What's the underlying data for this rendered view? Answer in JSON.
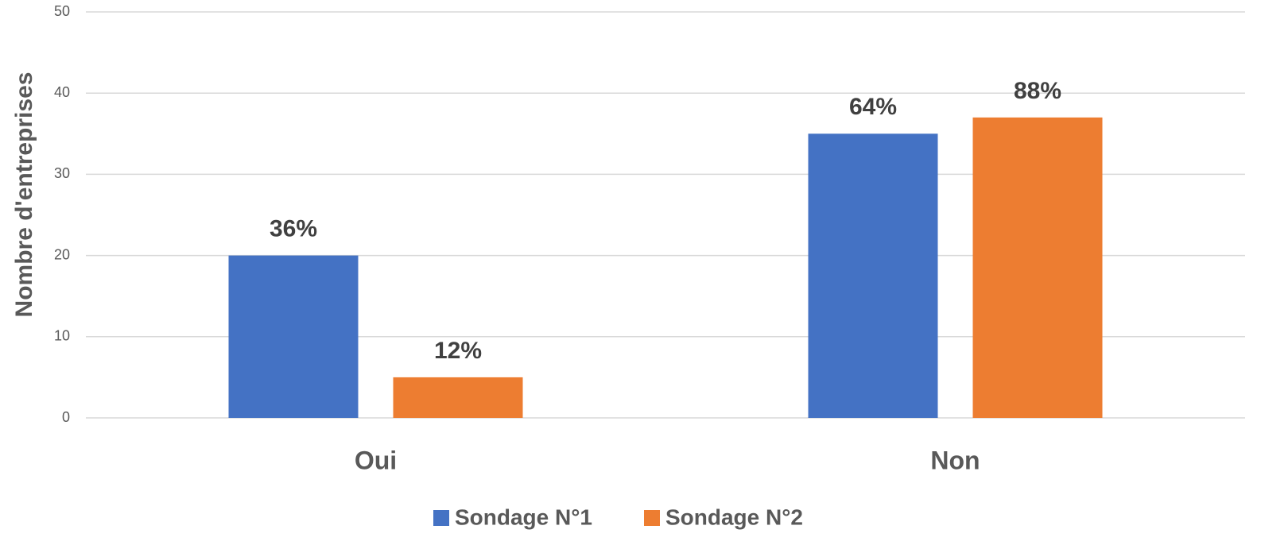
{
  "chart_data": {
    "type": "bar",
    "ylabel": "Nombre d'entreprises",
    "categories": [
      "Oui",
      "Non"
    ],
    "series": [
      {
        "name": "Sondage N°1",
        "color": "#4472c4",
        "values": [
          20,
          35
        ],
        "labels": [
          "36%",
          "64%"
        ]
      },
      {
        "name": "Sondage N°2",
        "color": "#ed7d31",
        "values": [
          5,
          37
        ],
        "labels": [
          "12%",
          "88%"
        ]
      }
    ],
    "ylim": [
      0,
      50
    ],
    "yticks": [
      0,
      10,
      20,
      30,
      40,
      50
    ],
    "grid": true,
    "legend": "bottom"
  }
}
